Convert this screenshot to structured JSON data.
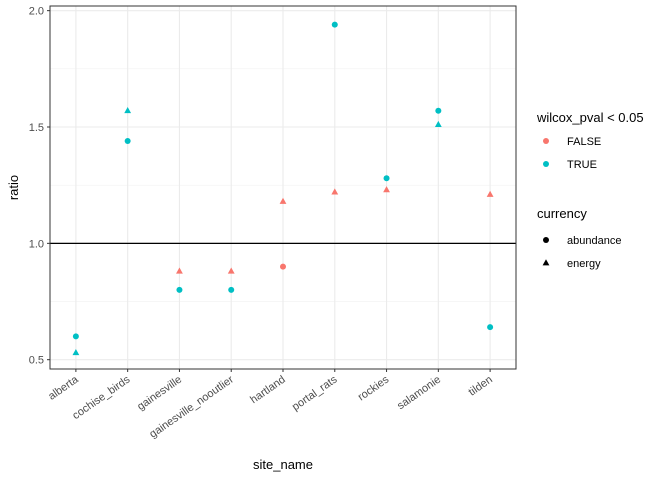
{
  "chart_data": {
    "type": "scatter",
    "xlabel": "site_name",
    "ylabel": "ratio",
    "categories": [
      "alberta",
      "cochise_birds",
      "gainesville",
      "gainesville_nooutlier",
      "hartland",
      "portal_rats",
      "rockies",
      "salamonie",
      "tilden"
    ],
    "ylim": [
      0.46,
      2.02
    ],
    "yticks": [
      0.5,
      1.0,
      1.5,
      2.0
    ],
    "ytick_labels": [
      "0.5",
      "1.0",
      "1.5",
      "2.0"
    ],
    "reference_line": 1.0,
    "grid": true,
    "legend_position": "right",
    "color_legend": {
      "title": "wilcox_pval < 0.05",
      "items": [
        {
          "label": "FALSE",
          "color": "#F8766D"
        },
        {
          "label": "TRUE",
          "color": "#00BFC4"
        }
      ]
    },
    "shape_legend": {
      "title": "currency",
      "items": [
        {
          "label": "abundance",
          "shape": "circle"
        },
        {
          "label": "energy",
          "shape": "triangle"
        }
      ]
    },
    "points": [
      {
        "site": "alberta",
        "currency": "abundance",
        "significant": "TRUE",
        "ratio": 0.6
      },
      {
        "site": "alberta",
        "currency": "energy",
        "significant": "TRUE",
        "ratio": 0.53
      },
      {
        "site": "cochise_birds",
        "currency": "abundance",
        "significant": "TRUE",
        "ratio": 1.44
      },
      {
        "site": "cochise_birds",
        "currency": "energy",
        "significant": "TRUE",
        "ratio": 1.57
      },
      {
        "site": "gainesville",
        "currency": "abundance",
        "significant": "TRUE",
        "ratio": 0.8
      },
      {
        "site": "gainesville",
        "currency": "energy",
        "significant": "FALSE",
        "ratio": 0.88
      },
      {
        "site": "gainesville_nooutlier",
        "currency": "abundance",
        "significant": "TRUE",
        "ratio": 0.8
      },
      {
        "site": "gainesville_nooutlier",
        "currency": "energy",
        "significant": "FALSE",
        "ratio": 0.88
      },
      {
        "site": "hartland",
        "currency": "abundance",
        "significant": "FALSE",
        "ratio": 0.9
      },
      {
        "site": "hartland",
        "currency": "energy",
        "significant": "FALSE",
        "ratio": 1.18
      },
      {
        "site": "portal_rats",
        "currency": "abundance",
        "significant": "TRUE",
        "ratio": 1.94
      },
      {
        "site": "portal_rats",
        "currency": "energy",
        "significant": "FALSE",
        "ratio": 1.22
      },
      {
        "site": "rockies",
        "currency": "abundance",
        "significant": "TRUE",
        "ratio": 1.28
      },
      {
        "site": "rockies",
        "currency": "energy",
        "significant": "FALSE",
        "ratio": 1.23
      },
      {
        "site": "salamonie",
        "currency": "abundance",
        "significant": "TRUE",
        "ratio": 1.57
      },
      {
        "site": "salamonie",
        "currency": "energy",
        "significant": "TRUE",
        "ratio": 1.51
      },
      {
        "site": "tilden",
        "currency": "abundance",
        "significant": "TRUE",
        "ratio": 0.64
      },
      {
        "site": "tilden",
        "currency": "energy",
        "significant": "FALSE",
        "ratio": 1.21
      }
    ]
  }
}
